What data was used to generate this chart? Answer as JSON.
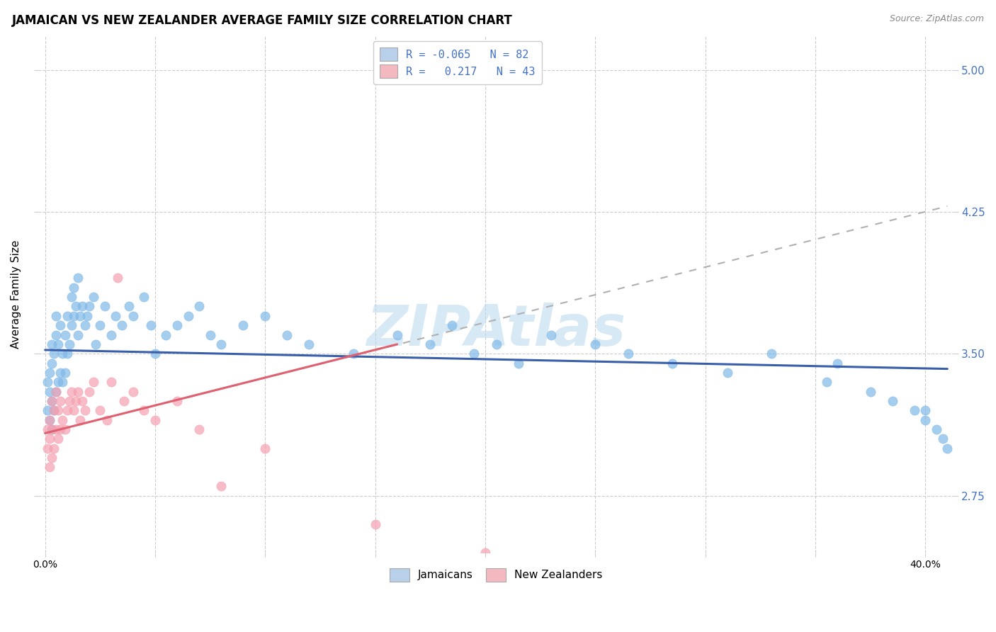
{
  "title": "JAMAICAN VS NEW ZEALANDER AVERAGE FAMILY SIZE CORRELATION CHART",
  "source": "Source: ZipAtlas.com",
  "ylabel": "Average Family Size",
  "xlim": [
    -0.003,
    0.413
  ],
  "ylim": [
    2.45,
    5.18
  ],
  "yticks_right": [
    2.75,
    3.5,
    4.25,
    5.0
  ],
  "xticks": [
    0.0,
    0.05,
    0.1,
    0.15,
    0.2,
    0.25,
    0.3,
    0.35,
    0.4
  ],
  "background_color": "#ffffff",
  "grid_color": "#cccccc",
  "blue_scatter_color": "#7fb9e8",
  "pink_scatter_color": "#f4a0b0",
  "blue_line_color": "#3a5faa",
  "pink_line_color": "#e06070",
  "pink_dashed_color": "#c8c8c8",
  "right_axis_color": "#4472c4",
  "watermark_color": "#b8d8f0",
  "blue_legend_fill": "#b8d0ea",
  "pink_legend_fill": "#f4b8c0",
  "jamaicans_x": [
    0.001,
    0.001,
    0.002,
    0.002,
    0.002,
    0.003,
    0.003,
    0.003,
    0.003,
    0.004,
    0.004,
    0.005,
    0.005,
    0.005,
    0.006,
    0.006,
    0.007,
    0.007,
    0.008,
    0.008,
    0.009,
    0.009,
    0.01,
    0.01,
    0.011,
    0.012,
    0.012,
    0.013,
    0.013,
    0.014,
    0.015,
    0.015,
    0.016,
    0.017,
    0.018,
    0.019,
    0.02,
    0.022,
    0.023,
    0.025,
    0.027,
    0.03,
    0.032,
    0.035,
    0.038,
    0.04,
    0.045,
    0.048,
    0.05,
    0.055,
    0.06,
    0.065,
    0.07,
    0.075,
    0.08,
    0.09,
    0.1,
    0.11,
    0.12,
    0.14,
    0.16,
    0.175,
    0.185,
    0.195,
    0.205,
    0.215,
    0.23,
    0.25,
    0.265,
    0.285,
    0.31,
    0.33,
    0.355,
    0.36,
    0.375,
    0.385,
    0.395,
    0.4,
    0.4,
    0.405,
    0.408,
    0.41
  ],
  "jamaicans_y": [
    3.2,
    3.35,
    3.15,
    3.3,
    3.4,
    3.1,
    3.25,
    3.45,
    3.55,
    3.2,
    3.5,
    3.3,
    3.6,
    3.7,
    3.35,
    3.55,
    3.4,
    3.65,
    3.35,
    3.5,
    3.4,
    3.6,
    3.5,
    3.7,
    3.55,
    3.65,
    3.8,
    3.7,
    3.85,
    3.75,
    3.6,
    3.9,
    3.7,
    3.75,
    3.65,
    3.7,
    3.75,
    3.8,
    3.55,
    3.65,
    3.75,
    3.6,
    3.7,
    3.65,
    3.75,
    3.7,
    3.8,
    3.65,
    3.5,
    3.6,
    3.65,
    3.7,
    3.75,
    3.6,
    3.55,
    3.65,
    3.7,
    3.6,
    3.55,
    3.5,
    3.6,
    3.55,
    3.65,
    3.5,
    3.55,
    3.45,
    3.6,
    3.55,
    3.5,
    3.45,
    3.4,
    3.5,
    3.35,
    3.45,
    3.3,
    3.25,
    3.2,
    3.15,
    3.2,
    3.1,
    3.05,
    3.0
  ],
  "nz_x": [
    0.001,
    0.001,
    0.002,
    0.002,
    0.002,
    0.003,
    0.003,
    0.003,
    0.004,
    0.004,
    0.005,
    0.005,
    0.006,
    0.006,
    0.007,
    0.007,
    0.008,
    0.009,
    0.01,
    0.011,
    0.012,
    0.013,
    0.014,
    0.015,
    0.016,
    0.017,
    0.018,
    0.02,
    0.022,
    0.025,
    0.028,
    0.03,
    0.033,
    0.036,
    0.04,
    0.045,
    0.05,
    0.06,
    0.07,
    0.08,
    0.1,
    0.15,
    0.2
  ],
  "nz_y": [
    3.0,
    3.1,
    2.9,
    3.05,
    3.15,
    2.95,
    3.1,
    3.25,
    3.0,
    3.2,
    3.1,
    3.3,
    3.05,
    3.2,
    3.1,
    3.25,
    3.15,
    3.1,
    3.2,
    3.25,
    3.3,
    3.2,
    3.25,
    3.3,
    3.15,
    3.25,
    3.2,
    3.3,
    3.35,
    3.2,
    3.15,
    3.35,
    3.9,
    3.25,
    3.3,
    3.2,
    3.15,
    3.25,
    3.1,
    2.8,
    3.0,
    2.6,
    2.45
  ]
}
